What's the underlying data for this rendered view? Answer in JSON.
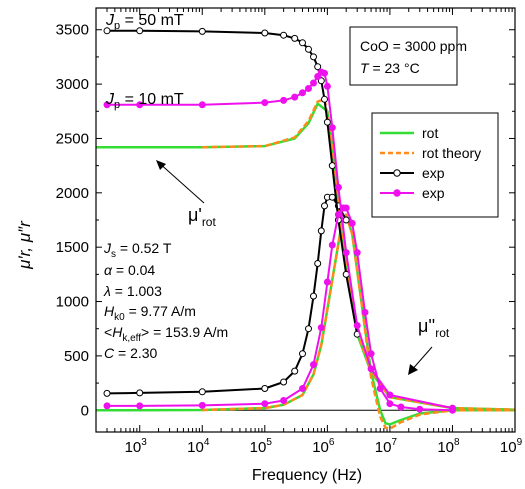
{
  "chart_data": {
    "type": "line",
    "xscale": "log",
    "xlim": [
      200,
      1000000000
    ],
    "ylim": [
      -200,
      3700
    ],
    "xlabel": "Frequency (Hz)",
    "ylabel": "μ′r, μ″r",
    "yticks": [
      0,
      500,
      1000,
      1500,
      2000,
      2500,
      3000,
      3500
    ],
    "yticklabels": [
      "0",
      "500",
      "1000",
      "1500",
      "2000",
      "2500",
      "3000",
      "3500"
    ],
    "xticks": [
      1000,
      10000,
      100000,
      1000000,
      10000000,
      100000000,
      1000000000
    ],
    "xticklabels": [
      "10",
      "10",
      "10",
      "10",
      "10",
      "10",
      "10"
    ],
    "xtickexps": [
      "3",
      "4",
      "5",
      "6",
      "7",
      "8",
      "9"
    ],
    "grid": false,
    "legend_position": "right",
    "colors": {
      "rot": "#33dd33",
      "rot_theory": "#ff8c1a",
      "exp50": "#000000",
      "exp10": "#ee11ee"
    },
    "series": [
      {
        "name": "rot",
        "role": "mu_prime_rot",
        "style": "solid",
        "color": "#33dd33",
        "x": [
          200,
          1000,
          10000,
          100000,
          300000,
          500000,
          700000,
          1000000,
          1200000,
          1500000,
          2000000,
          3000000,
          5000000,
          10000000,
          100000000,
          1000000000
        ],
        "y": [
          2420,
          2420,
          2420,
          2430,
          2500,
          2640,
          2820,
          2750,
          2450,
          1850,
          1300,
          700,
          350,
          120,
          20,
          5
        ]
      },
      {
        "name": "rot",
        "role": "mu_double_prime_rot",
        "style": "solid",
        "color": "#33dd33",
        "x": [
          200,
          10000,
          100000,
          200000,
          400000,
          600000,
          800000,
          1000000,
          1300000,
          1700000,
          2000000,
          2500000,
          3500000,
          5000000,
          7000000,
          8500000,
          10000000,
          15000000,
          30000000,
          100000000,
          1000000000
        ],
        "y": [
          0,
          2,
          20,
          50,
          140,
          330,
          600,
          930,
          1320,
          1720,
          1800,
          1620,
          1000,
          350,
          0,
          -120,
          -130,
          -90,
          -30,
          0,
          0
        ]
      },
      {
        "name": "rot theory",
        "role": "mu_prime_rot_theory",
        "style": "dashed",
        "color": "#ff8c1a",
        "x": [
          10000,
          100000,
          300000,
          500000,
          700000,
          900000,
          1100000,
          1500000,
          2000000,
          3000000,
          5000000,
          10000000,
          100000000,
          1000000000
        ],
        "y": [
          2420,
          2430,
          2510,
          2660,
          2840,
          2860,
          2600,
          1900,
          1350,
          720,
          360,
          120,
          20,
          5
        ]
      },
      {
        "name": "rot theory",
        "role": "mu_double_prime_rot_theory",
        "style": "dashed",
        "color": "#ff8c1a",
        "x": [
          10000,
          100000,
          200000,
          400000,
          600000,
          800000,
          1000000,
          1300000,
          1700000,
          2000000,
          2500000,
          3500000,
          5000000,
          7000000,
          8500000,
          10000000,
          15000000,
          30000000,
          100000000,
          1000000000
        ],
        "y": [
          2,
          20,
          50,
          140,
          330,
          600,
          930,
          1320,
          1720,
          1800,
          1620,
          1000,
          300,
          -60,
          -160,
          -170,
          -110,
          -40,
          0,
          0
        ]
      },
      {
        "name": "exp",
        "role": "mu_prime_50mT",
        "style": "solid-open-markers",
        "color": "#000000",
        "x": [
          300,
          1000,
          10000,
          100000,
          200000,
          300000,
          400000,
          500000,
          600000,
          700000,
          800000,
          900000,
          1000000,
          1200000,
          1500000,
          2000000,
          3000000
        ],
        "y": [
          3490,
          3490,
          3485,
          3470,
          3450,
          3420,
          3380,
          3320,
          3250,
          3160,
          3030,
          2860,
          2650,
          2250,
          1750,
          1250,
          700
        ]
      },
      {
        "name": "exp",
        "role": "mu_double_prime_50mT",
        "style": "solid-open-markers",
        "color": "#000000",
        "x": [
          300,
          1000,
          10000,
          100000,
          200000,
          300000,
          400000,
          500000,
          600000,
          700000,
          800000,
          900000,
          1000000,
          1200000,
          1500000,
          2000000
        ],
        "y": [
          155,
          160,
          170,
          200,
          260,
          360,
          520,
          750,
          1050,
          1350,
          1650,
          1880,
          1960,
          1960,
          1880,
          1750
        ]
      },
      {
        "name": "exp",
        "role": "mu_prime_10mT",
        "style": "solid-filled-markers",
        "color": "#ee11ee",
        "x": [
          300,
          1000,
          10000,
          100000,
          200000,
          300000,
          400000,
          500000,
          600000,
          700000,
          800000,
          900000,
          1000000,
          1200000,
          1500000,
          2000000,
          3000000,
          5000000,
          10000000,
          100000000
        ],
        "y": [
          2810,
          2810,
          2810,
          2830,
          2850,
          2880,
          2920,
          2960,
          3010,
          3070,
          3110,
          3100,
          2980,
          2600,
          2050,
          1450,
          780,
          380,
          140,
          20
        ]
      },
      {
        "name": "exp",
        "role": "mu_double_prime_10mT",
        "style": "solid-filled-markers",
        "color": "#ee11ee",
        "x": [
          300,
          1000,
          10000,
          100000,
          200000,
          400000,
          600000,
          800000,
          1000000,
          1200000,
          1500000,
          1800000,
          2000000,
          2500000,
          3000000,
          4000000,
          5000000,
          7000000,
          10000000,
          15000000,
          30000000,
          100000000
        ],
        "y": [
          40,
          40,
          45,
          60,
          90,
          200,
          420,
          760,
          1180,
          1520,
          1800,
          1860,
          1860,
          1720,
          1450,
          900,
          520,
          200,
          60,
          30,
          10,
          0
        ]
      }
    ],
    "legend": [
      {
        "label": "rot",
        "style": "solid",
        "color": "#33dd33"
      },
      {
        "label": "rot theory",
        "style": "dashed",
        "color": "#ff8c1a"
      },
      {
        "label": "exp",
        "style": "open",
        "color": "#000000"
      },
      {
        "label": "exp",
        "style": "filled",
        "color": "#ee11ee"
      }
    ],
    "annotations": {
      "jp50": {
        "sym": "J",
        "sub": "p",
        "rest": " = 50 mT"
      },
      "jp10": {
        "sym": "J",
        "sub": "p",
        "rest": " = 10 mT"
      },
      "mu_rot_prime": {
        "main": "μ'",
        "sub": "rot"
      },
      "mu_rot_double_prime": {
        "main": "μ''",
        "sub": "rot"
      },
      "info_box": {
        "line1": "CoO = 3000 ppm",
        "line2_sym": "T",
        "line2_rest": " = 23 °C"
      },
      "params": {
        "js_sym": "J",
        "js_sub": "s",
        "js_rest": " = 0.52 T",
        "alpha_sym": "α",
        "alpha_rest": " = 0.04",
        "lambda_sym": "λ",
        "lambda_rest": " = 1.003",
        "hk0_sym": "H",
        "hk0_sub": "k0",
        "hk0_rest": " = 9.77 A/m",
        "hkeff_pre": "<",
        "hkeff_sym": "H",
        "hkeff_sub": "k,eff",
        "hkeff_rest": "> = 153.9 A/m",
        "c_sym": "C",
        "c_rest": " = 2.30"
      }
    }
  }
}
